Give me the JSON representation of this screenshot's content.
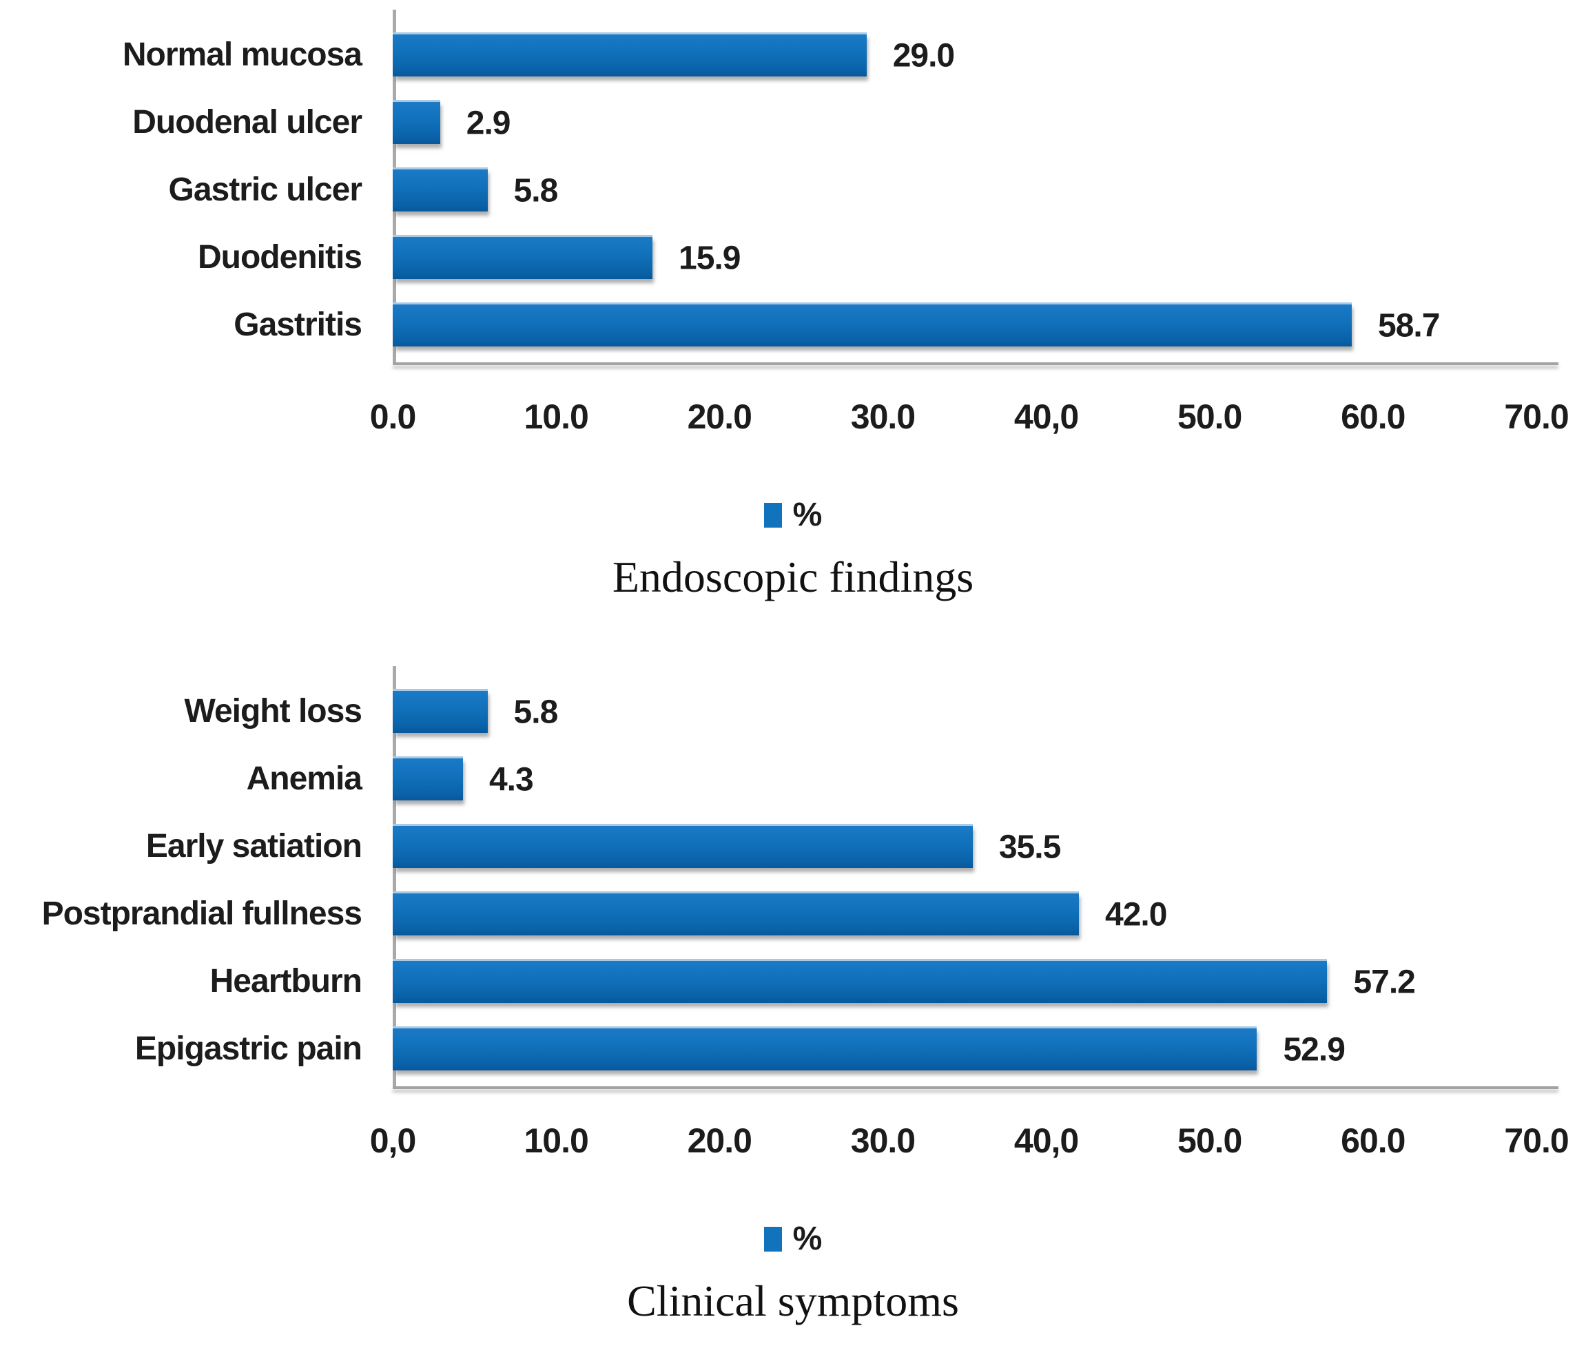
{
  "figure": {
    "background_color": "#ffffff",
    "bar_color": "#1273bd",
    "axis_line_color": "#a3a3a3",
    "text_color": "#1c1c1c"
  },
  "chart_data": [
    {
      "id": "endoscopic-findings",
      "type": "bar",
      "orientation": "horizontal",
      "title": "Endoscopic findings",
      "legend": [
        "%"
      ],
      "legend_position": "bottom",
      "grid": false,
      "categories": [
        "Normal mucosa",
        "Duodenal ulcer",
        "Gastric ulcer",
        "Duodenitis",
        "Gastritis"
      ],
      "values": [
        29.0,
        2.9,
        5.8,
        15.9,
        58.7
      ],
      "value_labels": [
        "29.0",
        "2.9",
        "5.8",
        "15.9",
        "58.7"
      ],
      "xlim": [
        0,
        70
      ],
      "tick_labels": [
        "0.0",
        "10.0",
        "20.0",
        "30.0",
        "40,0",
        "50.0",
        "60.0",
        "70.0"
      ],
      "bar_color": "#1273bd"
    },
    {
      "id": "clinical-symptoms",
      "type": "bar",
      "orientation": "horizontal",
      "title": "Clinical symptoms",
      "legend": [
        "%"
      ],
      "legend_position": "bottom",
      "grid": false,
      "categories": [
        "Weight loss",
        "Anemia",
        "Early satiation",
        "Postprandial fullness",
        "Heartburn",
        "Epigastric pain"
      ],
      "values": [
        5.8,
        4.3,
        35.5,
        42.0,
        57.2,
        52.9
      ],
      "value_labels": [
        "5.8",
        "4.3",
        "35.5",
        "42.0",
        "57.2",
        "52.9"
      ],
      "xlim": [
        0,
        70
      ],
      "tick_labels": [
        "0,0",
        "10.0",
        "20.0",
        "30.0",
        "40,0",
        "50.0",
        "60.0",
        "70.0"
      ],
      "bar_color": "#1273bd"
    }
  ]
}
